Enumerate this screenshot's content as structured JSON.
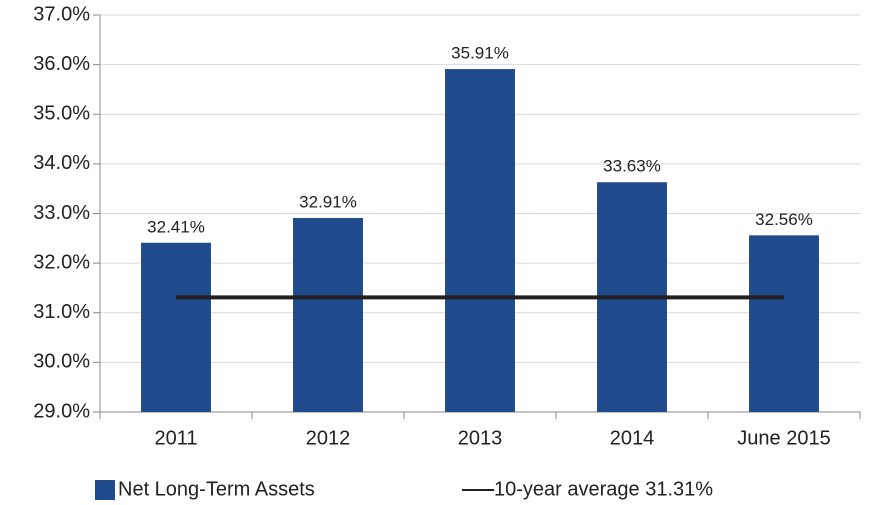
{
  "chart_data": {
    "type": "bar",
    "categories": [
      "2011",
      "2012",
      "2013",
      "2014",
      "June 2015"
    ],
    "series": [
      {
        "name": "Net Long-Term Assets",
        "color": "#1f4a8c",
        "type": "bar",
        "values": [
          32.41,
          32.91,
          35.91,
          33.63,
          32.56
        ],
        "value_labels": [
          "32.41%",
          "32.91%",
          "35.91%",
          "33.63%",
          "32.56%"
        ]
      },
      {
        "name": "10-year average 31.31%",
        "color": "#231f20",
        "type": "line",
        "values": [
          31.31,
          31.31,
          31.31,
          31.31,
          31.31
        ]
      }
    ],
    "ylim": [
      29,
      37
    ],
    "yticks": [
      {
        "value": 29,
        "label": "29.0%"
      },
      {
        "value": 30,
        "label": "30.0%"
      },
      {
        "value": 31,
        "label": "31.0%"
      },
      {
        "value": 32,
        "label": "32.0%"
      },
      {
        "value": 33,
        "label": "33.0%"
      },
      {
        "value": 34,
        "label": "34.0%"
      },
      {
        "value": 35,
        "label": "35.0%"
      },
      {
        "value": 36,
        "label": "36.0%"
      },
      {
        "value": 37,
        "label": "37.0%"
      }
    ],
    "grid": true,
    "legend": "bottom"
  }
}
